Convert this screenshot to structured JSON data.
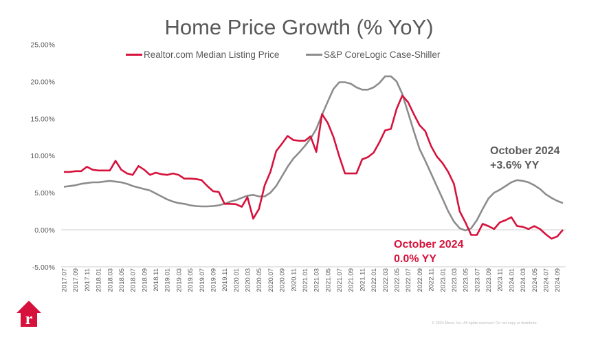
{
  "chart_data": {
    "type": "line",
    "title": "Home Price Growth (% YoY)",
    "xlabel": "",
    "ylabel": "",
    "ylim": [
      -5,
      25
    ],
    "yticks": [
      "-5.00%",
      "0.00%",
      "5.00%",
      "10.00%",
      "15.00%",
      "20.00%",
      "25.00%"
    ],
    "ytick_values": [
      -5,
      0,
      5,
      10,
      15,
      20,
      25
    ],
    "x_start": "2017.07",
    "x_end": "2024.10",
    "xtick_labels": [
      "2017.07",
      "2017.09",
      "2017.11",
      "2018.01",
      "2018.03",
      "2018.05",
      "2018.07",
      "2018.09",
      "2018.11",
      "2019.01",
      "2019.03",
      "2019.05",
      "2019.07",
      "2019.09",
      "2019.11",
      "2020.01",
      "2020.03",
      "2020.05",
      "2020.07",
      "2020.09",
      "2020.11",
      "2021.01",
      "2021.03",
      "2021.05",
      "2021.07",
      "2021.09",
      "2021.11",
      "2022.01",
      "2022.03",
      "2022.05",
      "2022.07",
      "2022.09",
      "2022.11",
      "2023.01",
      "2023.03",
      "2023.05",
      "2023.07",
      "2023.09",
      "2023.11",
      "2024.01",
      "2024.03",
      "2024.05",
      "2024.07",
      "2024.09"
    ],
    "legend_position": "top",
    "grid": "zero line only",
    "series": [
      {
        "name": "Realtor.com Median Listing Price",
        "color": "#d6123c",
        "values": [
          7.8,
          7.8,
          7.9,
          7.9,
          8.5,
          8.1,
          8.0,
          8.0,
          8.0,
          9.3,
          8.1,
          7.6,
          7.4,
          8.6,
          8.1,
          7.4,
          7.7,
          7.5,
          7.4,
          7.6,
          7.4,
          6.9,
          6.9,
          6.85,
          6.7,
          5.9,
          5.2,
          5.1,
          3.5,
          3.5,
          3.45,
          3.1,
          4.4,
          1.5,
          2.8,
          6.0,
          7.8,
          10.6,
          11.6,
          12.65,
          12.1,
          12.0,
          12.0,
          12.6,
          10.5,
          15.6,
          14.4,
          12.5,
          9.9,
          7.6,
          7.6,
          7.6,
          9.5,
          9.8,
          10.4,
          11.8,
          13.4,
          13.6,
          16.3,
          18.1,
          17.2,
          15.6,
          14.1,
          13.3,
          11.3,
          9.9,
          9.0,
          7.8,
          6.2,
          2.5,
          1.0,
          -0.7,
          -0.7,
          0.8,
          0.5,
          0.1,
          1.0,
          1.3,
          1.7,
          0.5,
          0.4,
          0.1,
          0.5,
          0.1,
          -0.6,
          -1.2,
          -0.9,
          0.0
        ]
      },
      {
        "name": "S&P CoreLogic Case-Shiller",
        "color": "#8c8c8c",
        "values": [
          5.8,
          5.9,
          6.0,
          6.2,
          6.3,
          6.4,
          6.4,
          6.5,
          6.6,
          6.5,
          6.4,
          6.2,
          5.9,
          5.7,
          5.5,
          5.3,
          4.9,
          4.5,
          4.1,
          3.8,
          3.6,
          3.5,
          3.3,
          3.2,
          3.15,
          3.15,
          3.2,
          3.3,
          3.5,
          3.8,
          4.0,
          4.3,
          4.6,
          4.7,
          4.5,
          4.5,
          5.0,
          5.9,
          7.2,
          8.5,
          9.6,
          10.4,
          11.3,
          12.3,
          13.6,
          15.5,
          17.3,
          19.0,
          19.9,
          19.9,
          19.7,
          19.2,
          18.9,
          18.9,
          19.2,
          19.8,
          20.7,
          20.7,
          20.0,
          18.3,
          15.8,
          13.3,
          10.9,
          9.3,
          7.6,
          5.9,
          4.2,
          2.5,
          1.1,
          0.2,
          -0.1,
          0.2,
          1.3,
          2.8,
          4.2,
          5.0,
          5.4,
          5.9,
          6.4,
          6.7,
          6.6,
          6.4,
          6.0,
          5.5,
          4.8,
          4.3,
          3.9,
          3.6
        ]
      }
    ],
    "annotations": [
      {
        "line1": "October 2024",
        "line2": "+3.6% YY",
        "color": "#595959"
      },
      {
        "line1": "October 2024",
        "line2": "0.0% YY",
        "color": "#d6123c"
      }
    ]
  },
  "footer": {
    "copyright": "© 2024 Move, Inc. All rights reserved. Do not copy or distribute.",
    "logo_letter": "r",
    "logo_color": "#d6123c"
  }
}
